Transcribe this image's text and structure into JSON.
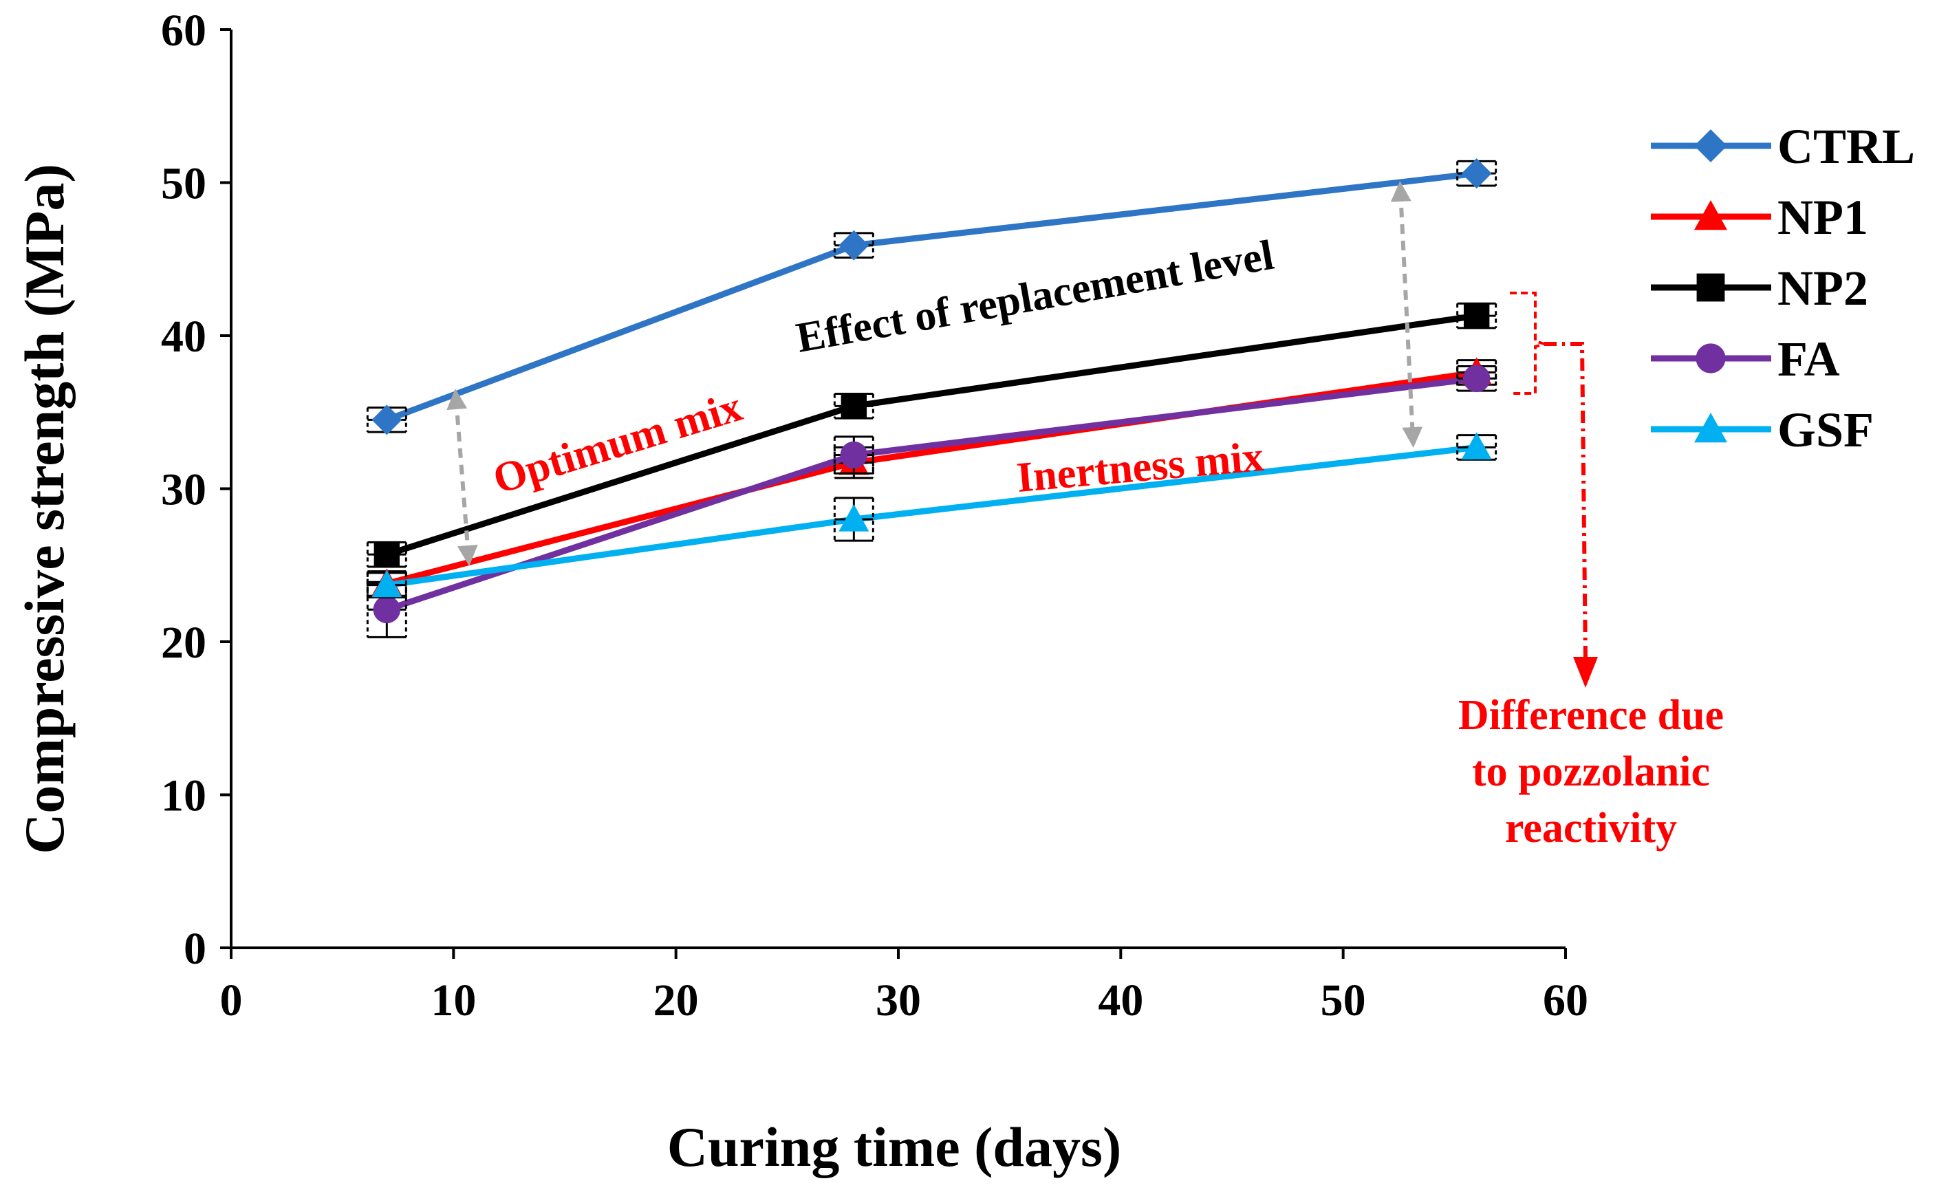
{
  "chart_data": {
    "type": "line",
    "title": "",
    "xlabel": "Curing time (days)",
    "ylabel": "Compressive strength (MPa)",
    "xlim": [
      0,
      60
    ],
    "ylim": [
      0,
      60
    ],
    "xticks": [
      0,
      10,
      20,
      30,
      40,
      50,
      60
    ],
    "yticks": [
      0,
      10,
      20,
      30,
      40,
      50,
      60
    ],
    "grid": false,
    "legend_position": "right",
    "x": [
      7,
      28,
      56
    ],
    "series": [
      {
        "name": "CTRL",
        "values": [
          34.5,
          45.9,
          50.6
        ],
        "error": [
          0.8,
          0.8,
          0.8
        ],
        "color": "#2e75c6",
        "marker": "diamond"
      },
      {
        "name": "NP1",
        "values": [
          23.8,
          31.7,
          37.6
        ],
        "error": [
          0.8,
          1.0,
          0.8
        ],
        "color": "#ff0000",
        "marker": "triangle"
      },
      {
        "name": "NP2",
        "values": [
          25.7,
          35.4,
          41.3
        ],
        "error": [
          0.8,
          0.8,
          0.8
        ],
        "color": "#000000",
        "marker": "square"
      },
      {
        "name": "FA",
        "values": [
          22.1,
          32.2,
          37.2
        ],
        "error": [
          1.8,
          1.2,
          0.8
        ],
        "color": "#7030a0",
        "marker": "circle"
      },
      {
        "name": "GSF",
        "values": [
          23.7,
          28.0,
          32.7
        ],
        "error": [
          0.8,
          1.4,
          0.8
        ],
        "color": "#00b0f0",
        "marker": "triangle"
      }
    ],
    "annotations": {
      "optimum_mix": "Optimum mix",
      "inertness_mix": "Inertness mix",
      "replacement_level": "Effect of replacement level",
      "difference_line1": "Difference due",
      "difference_line2": "to pozzolanic",
      "difference_line3": "reactivity"
    }
  }
}
